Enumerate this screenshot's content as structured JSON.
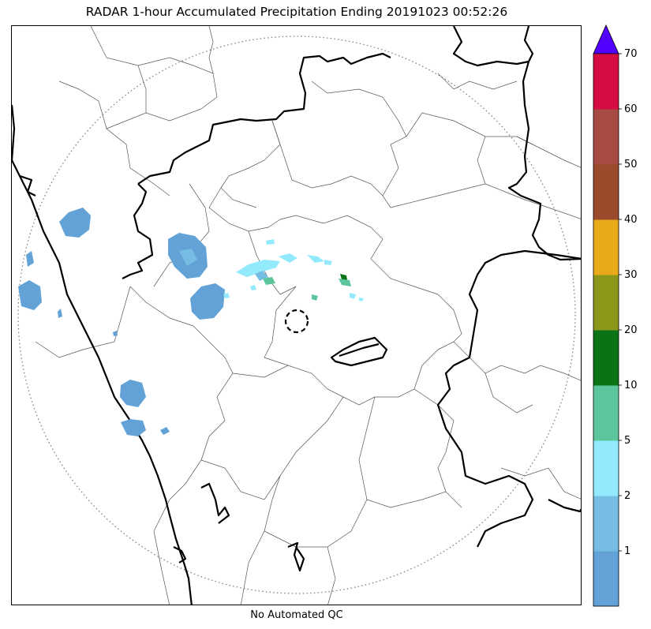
{
  "title": "RADAR 1-hour Accumulated Precipitation Ending 20191023 00:52:26",
  "footer": "No Automated QC",
  "colorbar": {
    "levels": [
      {
        "color": "#62a2d6",
        "label": "1"
      },
      {
        "color": "#75bde3",
        "label": "2"
      },
      {
        "color": "#93eafc",
        "label": "5"
      },
      {
        "color": "#5dc59b",
        "label": "10"
      },
      {
        "color": "#0a7316",
        "label": "20"
      },
      {
        "color": "#8a9718",
        "label": "30"
      },
      {
        "color": "#e8aa1b",
        "label": "40"
      },
      {
        "color": "#9a4b2c",
        "label": "50"
      },
      {
        "color": "#a84b43",
        "label": "60"
      },
      {
        "color": "#d60c44",
        "label": "70"
      }
    ],
    "extend_color": "#5200ff"
  },
  "legend_labels": {
    "l1": "1",
    "l2": "2",
    "l5": "5",
    "l10": "10",
    "l20": "20",
    "l30": "30",
    "l40": "40",
    "l50": "50",
    "l60": "60",
    "l70": "70"
  }
}
